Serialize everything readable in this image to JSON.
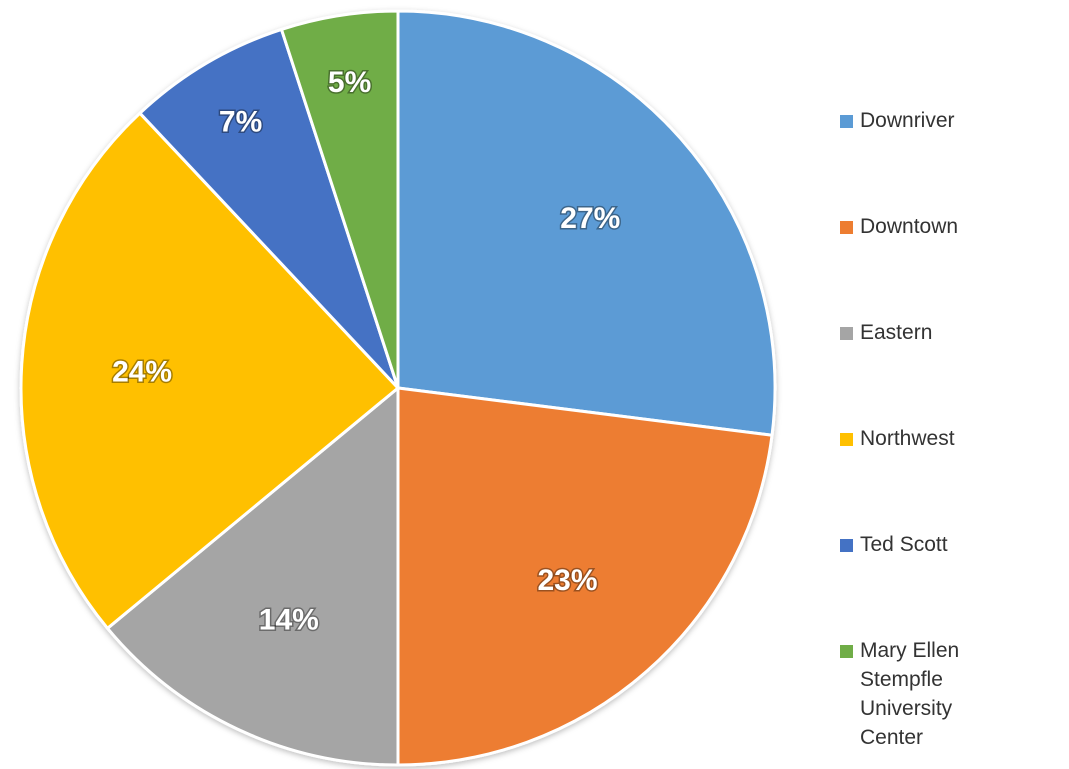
{
  "chart_data": {
    "type": "pie",
    "title": "",
    "categories": [
      "Downriver",
      "Downtown",
      "Eastern",
      "Northwest",
      "Ted Scott",
      "Mary Ellen Stempfle University Center"
    ],
    "values": [
      27,
      23,
      14,
      24,
      7,
      5
    ],
    "data_labels": [
      "27%",
      "23%",
      "14%",
      "24%",
      "7%",
      "5%"
    ],
    "colors": [
      "#5B9BD5",
      "#ED7D31",
      "#A5A5A5",
      "#FFC000",
      "#4472C4",
      "#70AD47"
    ],
    "legend_position": "right",
    "start_angle_deg": 0,
    "direction": "clockwise"
  },
  "legend": {
    "items": [
      {
        "label": "Downriver",
        "color": "#5B9BD5"
      },
      {
        "label": "Downtown",
        "color": "#ED7D31"
      },
      {
        "label": "Eastern",
        "color": "#A5A5A5"
      },
      {
        "label": "Northwest",
        "color": "#FFC000"
      },
      {
        "label": "Ted Scott",
        "color": "#4472C4"
      },
      {
        "label": "Mary Ellen Stempfle University Center",
        "color": "#70AD47"
      }
    ]
  }
}
